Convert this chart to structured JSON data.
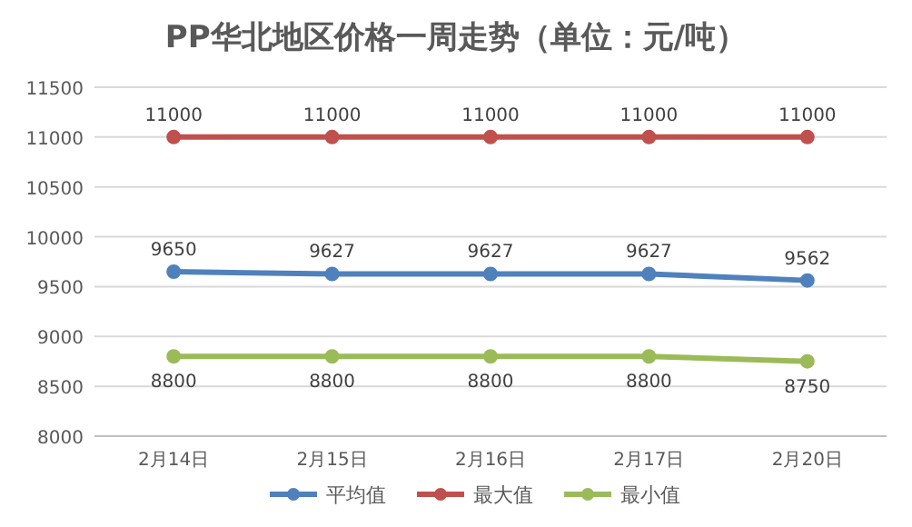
{
  "chart_data": {
    "type": "line",
    "title": "PP华北地区价格一周走势（单位：元/吨）",
    "categories": [
      "2月14日",
      "2月15日",
      "2月16日",
      "2月17日",
      "2月20日"
    ],
    "series": [
      {
        "name": "平均值",
        "color": "#4f81bd",
        "values": [
          9650,
          9627,
          9627,
          9627,
          9562
        ]
      },
      {
        "name": "最大值",
        "color": "#c0504d",
        "values": [
          11000,
          11000,
          11000,
          11000,
          11000
        ]
      },
      {
        "name": "最小值",
        "color": "#9bbb59",
        "values": [
          8800,
          8800,
          8800,
          8800,
          8750
        ]
      }
    ],
    "ylim": [
      8000,
      11500
    ],
    "yticks": [
      8000,
      8500,
      9000,
      9500,
      10000,
      10500,
      11000,
      11500
    ],
    "grid": "y",
    "legend": "bottom",
    "marker": "circle",
    "data_labels": true
  }
}
